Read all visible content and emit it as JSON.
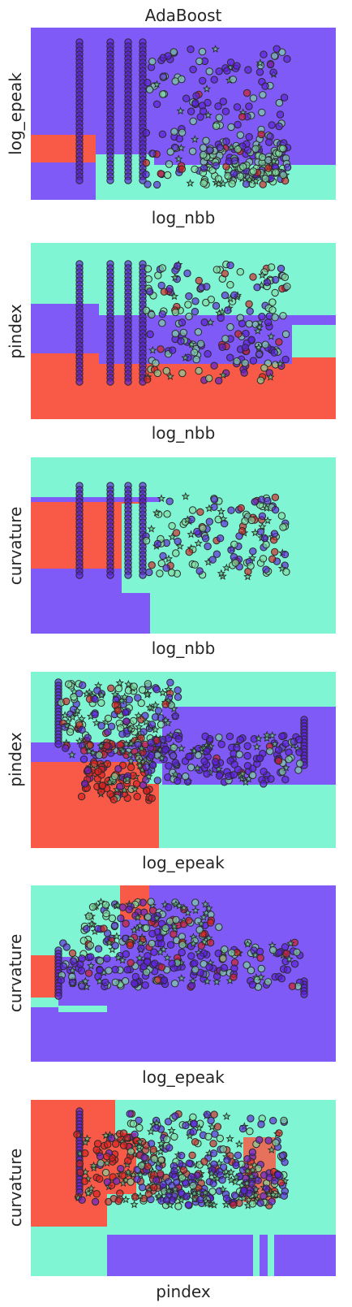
{
  "chart_data": [
    {
      "type": "scatter",
      "title": "AdaBoost",
      "xlabel": "log_nbb",
      "ylabel": "log_epeak",
      "grid": false,
      "regions": "step decision regions: background purple, lower-left red block, lower-right teal band",
      "class_colors": {
        "class_a": "#7f5af7",
        "class_b": "#7ff5d3",
        "class_c": "#f85a47"
      }
    },
    {
      "type": "scatter",
      "title": "",
      "xlabel": "log_nbb",
      "ylabel": "pindex",
      "grid": false,
      "regions": "top teal, middle purple band, bottom red",
      "class_colors": {
        "class_a": "#7f5af7",
        "class_b": "#7ff5d3",
        "class_c": "#f85a47"
      }
    },
    {
      "type": "scatter",
      "title": "",
      "xlabel": "log_nbb",
      "ylabel": "curvature",
      "grid": false,
      "regions": "teal background, red block upper-left, purple lower-left",
      "class_colors": {
        "class_a": "#7f5af7",
        "class_b": "#7ff5d3",
        "class_c": "#f85a47"
      }
    },
    {
      "type": "scatter",
      "title": "",
      "xlabel": "log_epeak",
      "ylabel": "pindex",
      "grid": false,
      "regions": "teal top, purple right band, red lower-left block",
      "class_colors": {
        "class_a": "#7f5af7",
        "class_b": "#7ff5d3",
        "class_c": "#f85a47"
      }
    },
    {
      "type": "scatter",
      "title": "",
      "xlabel": "log_epeak",
      "ylabel": "curvature",
      "grid": false,
      "regions": "purple background, teal/red columns top-left, red left block",
      "class_colors": {
        "class_a": "#7f5af7",
        "class_b": "#7ff5d3",
        "class_c": "#f85a47"
      }
    },
    {
      "type": "scatter",
      "title": "",
      "xlabel": "pindex",
      "ylabel": "curvature",
      "grid": false,
      "regions": "red left block, teal background, purple bottom band",
      "class_colors": {
        "class_a": "#7f5af7",
        "class_b": "#7ff5d3",
        "class_c": "#f85a47"
      }
    }
  ]
}
